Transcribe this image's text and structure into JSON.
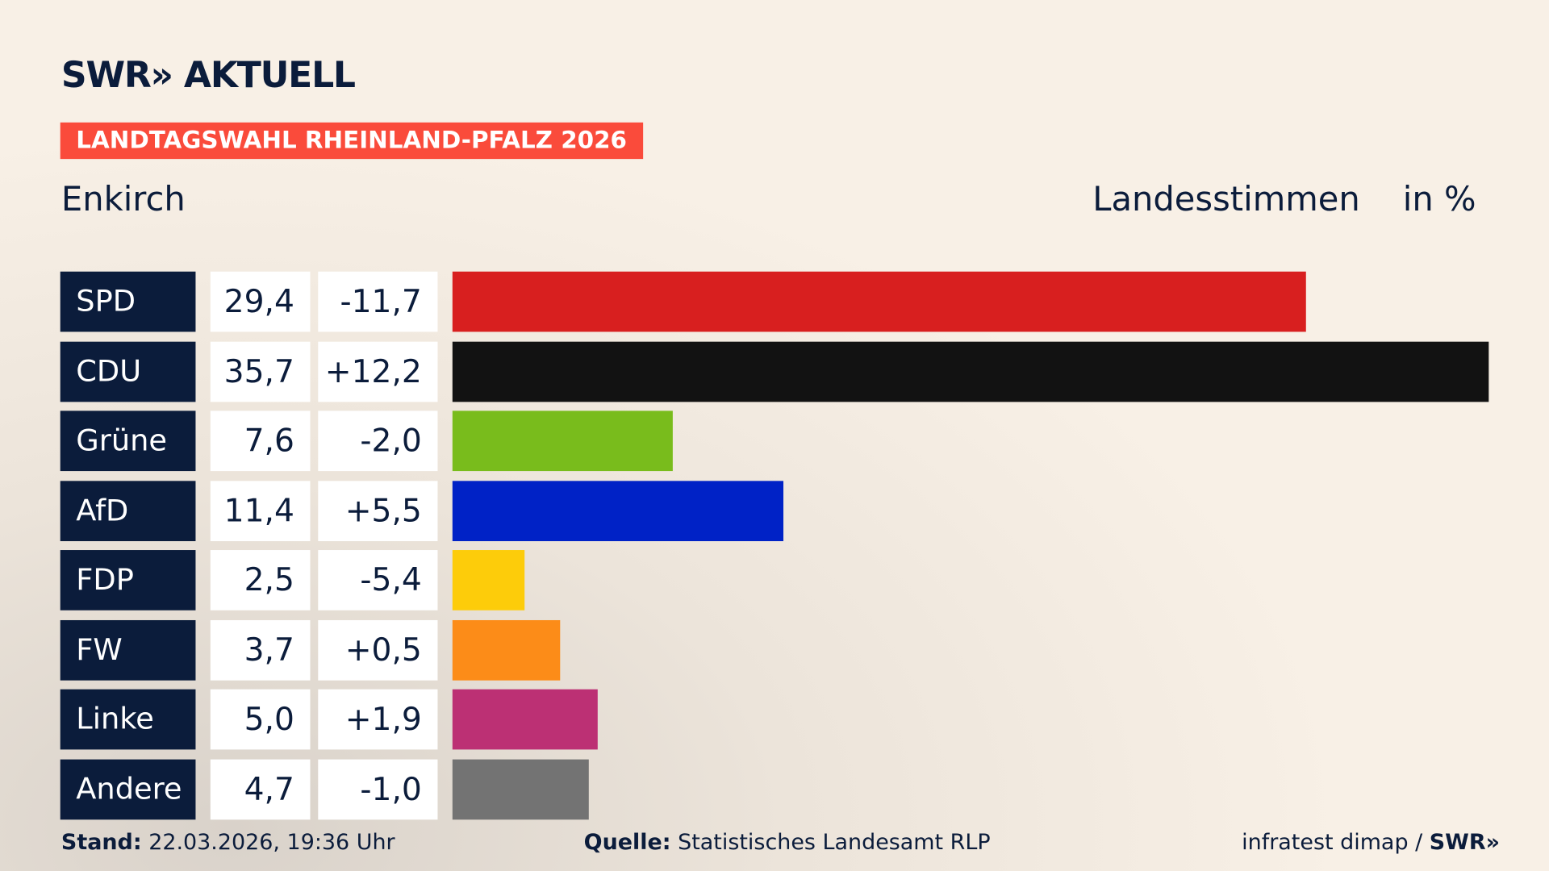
{
  "header": {
    "logo": "SWR» AKTUELL",
    "tag": "LANDTAGSWAHL RHEINLAND-PFALZ 2026",
    "region": "Enkirch",
    "measure": "Landesstimmen",
    "unit": "in %"
  },
  "chart_data": {
    "type": "bar",
    "orientation": "horizontal",
    "categories": [
      "SPD",
      "CDU",
      "Grüne",
      "AfD",
      "FDP",
      "FW",
      "Linke",
      "Andere"
    ],
    "values": [
      29.4,
      35.7,
      7.6,
      11.4,
      2.5,
      3.7,
      5.0,
      4.7
    ],
    "values_label": [
      "29,4",
      "35,7",
      "7,6",
      "11,4",
      "2,5",
      "3,7",
      "5,0",
      "4,7"
    ],
    "diff": [
      "-11,7",
      "+12,2",
      "-2,0",
      "+5,5",
      "-5,4",
      "+0,5",
      "+1,9",
      "-1,0"
    ],
    "colors": [
      "#d81f1f",
      "#121212",
      "#79bc1c",
      "#0022c6",
      "#fdcc0a",
      "#fc8c18",
      "#bc3074",
      "#737373"
    ],
    "xlim": [
      0,
      35.7
    ]
  },
  "footer": {
    "stand_label": "Stand:",
    "stand": "22.03.2026, 19:36 Uhr",
    "source_label": "Quelle:",
    "source": "Statistisches Landesamt RLP",
    "credit": "infratest dimap / ",
    "credit_logo": "SWR»"
  }
}
